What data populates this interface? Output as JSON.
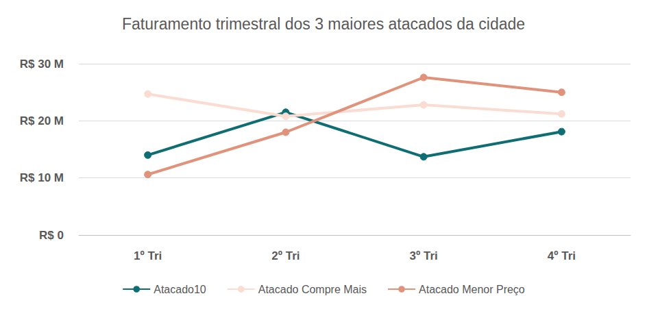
{
  "chart_data": {
    "type": "line",
    "title": "Faturamento trimestral dos 3 maiores atacados da cidade",
    "categories": [
      "1º Tri",
      "2º Tri",
      "3º Tri",
      "4º Tri"
    ],
    "series": [
      {
        "name": "Atacado10",
        "color": "#0e6e73",
        "marker": "circle",
        "values": [
          14,
          21.5,
          13.7,
          18.1
        ]
      },
      {
        "name": "Atacado Compre Mais",
        "color": "#fbdcd3",
        "marker": "circle",
        "values": [
          24.7,
          20.8,
          22.8,
          21.2
        ]
      },
      {
        "name": "Atacado Menor Preço",
        "color": "#e0937a",
        "marker": "circle",
        "values": [
          10.6,
          18,
          27.6,
          25
        ]
      }
    ],
    "ylim": [
      0,
      30
    ],
    "yticks": [
      {
        "value": 0,
        "label": "R$ 0"
      },
      {
        "value": 10,
        "label": "R$ 10 M"
      },
      {
        "value": 20,
        "label": "R$ 20 M"
      },
      {
        "value": 30,
        "label": "R$ 30 M"
      }
    ],
    "grid": true,
    "legend": "bottom"
  }
}
